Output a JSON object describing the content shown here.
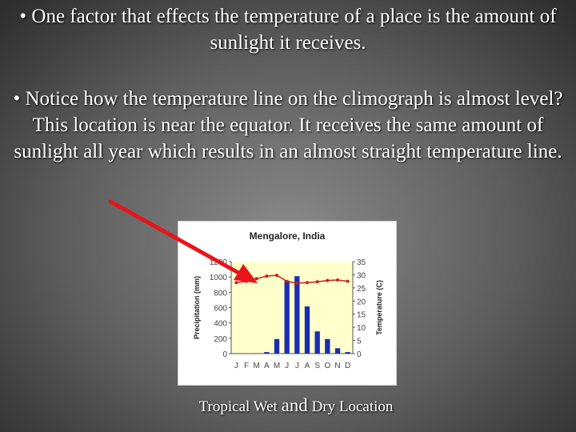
{
  "slide": {
    "bullet1": "• One factor that effects the temperature of a place is the amount of sunlight it receives.",
    "bullet2": "• Notice how the temperature line on the climograph is almost level?  This location is near the equator.  It receives the same amount of sunlight all year which results in an almost straight temperature line.",
    "caption_part1": "Tropical Wet ",
    "caption_part2": "and",
    "caption_part3": " Dry Location"
  },
  "colors": {
    "background": "#5e5e5e",
    "text": "#ffffff",
    "plot_area": "#ffffcc",
    "bars": "#1a2db3",
    "temperature_line": "#cc1f1f",
    "arrow": "#e8141a"
  },
  "chart_data": {
    "type": "bar",
    "title": "Mengalore, India",
    "categories": [
      "J",
      "F",
      "M",
      "A",
      "M",
      "J",
      "J",
      "A",
      "S",
      "O",
      "N",
      "D"
    ],
    "xlabel": "",
    "series": [
      {
        "name": "",
        "axis": "left",
        "type": "bar",
        "values": [
          3,
          1,
          5,
          20,
          190,
          950,
          1010,
          615,
          290,
          190,
          70,
          20
        ]
      },
      {
        "name": "",
        "axis": "right",
        "type": "line",
        "values": [
          27.0,
          27.5,
          28.5,
          29.5,
          29.8,
          27.5,
          26.8,
          27.0,
          27.3,
          27.8,
          28.0,
          27.5
        ]
      }
    ],
    "ylabel": "Precipitation (mm)",
    "y_ticks": [
      "0",
      "200",
      "400",
      "600",
      "800",
      "1000",
      "1200"
    ],
    "ylim": [
      0,
      1200
    ],
    "y2label": "Temperature (C)",
    "y2_ticks": [
      "0",
      "5",
      "10",
      "15",
      "20",
      "25",
      "30",
      "35"
    ],
    "y2lim": [
      0,
      35
    ],
    "grid": false,
    "legend": "none"
  }
}
